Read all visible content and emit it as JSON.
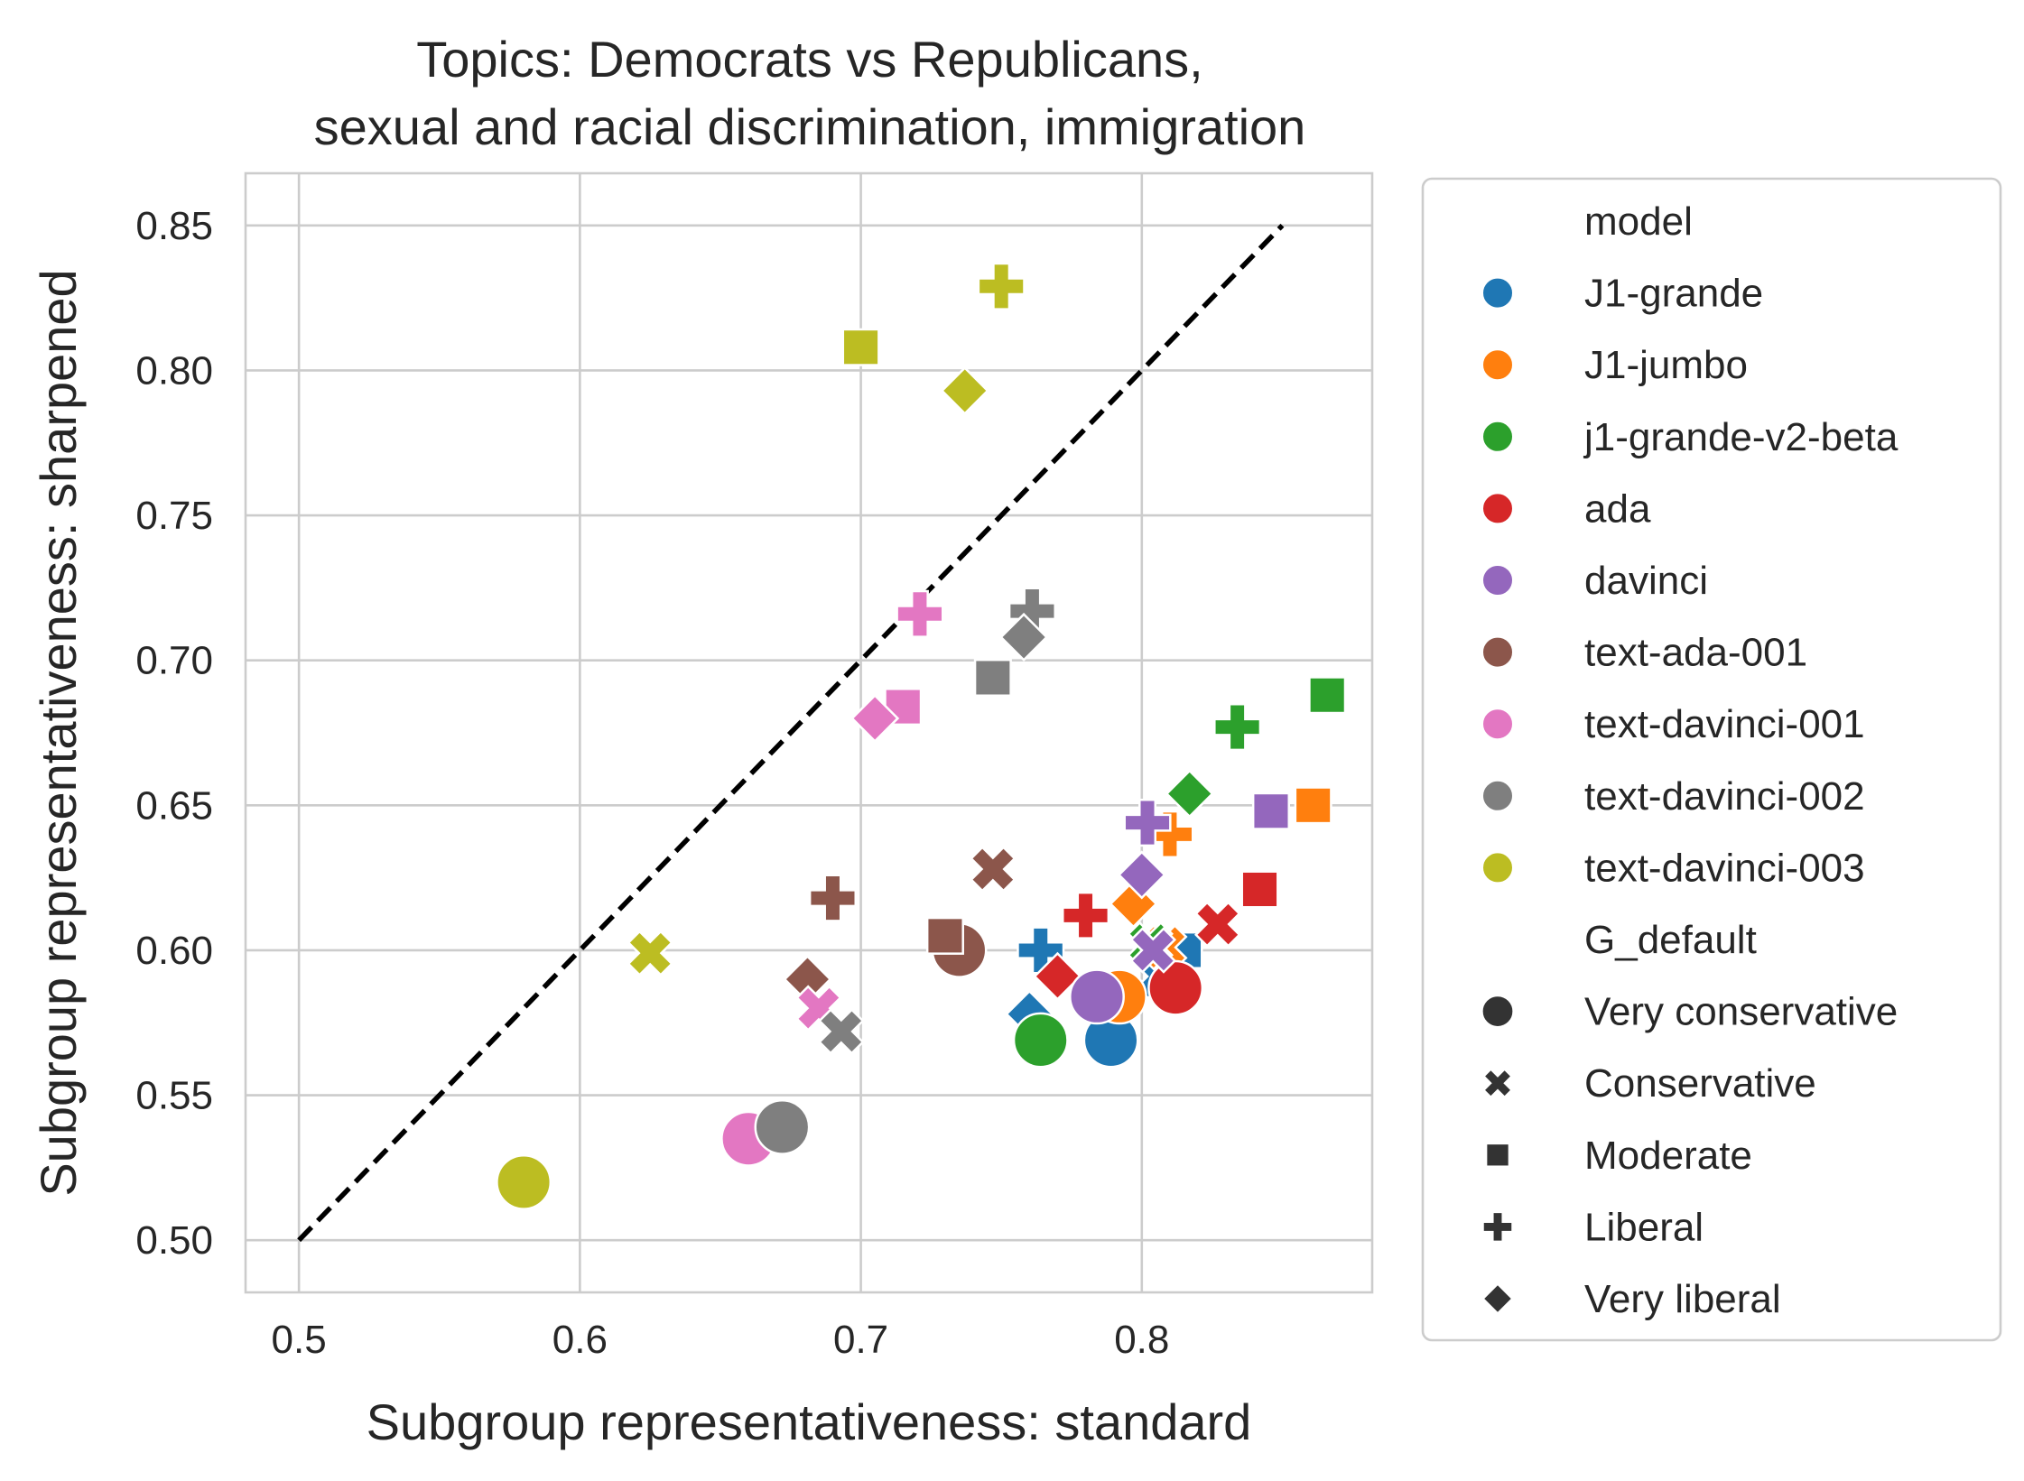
{
  "chart_data": {
    "type": "scatter",
    "title": [
      "Topics: Democrats vs Republicans,",
      "sexual and racial discrimination, immigration"
    ],
    "xlabel": "Subgroup representativeness: standard",
    "ylabel": "Subgroup representativeness: sharpened",
    "xlim": [
      0.481,
      0.882
    ],
    "ylim": [
      0.482,
      0.868
    ],
    "xticks": [
      {
        "value": 0.5,
        "label": "0.5"
      },
      {
        "value": 0.6,
        "label": "0.6"
      },
      {
        "value": 0.7,
        "label": "0.7"
      },
      {
        "value": 0.8,
        "label": "0.8"
      }
    ],
    "yticks": [
      {
        "value": 0.5,
        "label": "0.50"
      },
      {
        "value": 0.55,
        "label": "0.55"
      },
      {
        "value": 0.6,
        "label": "0.60"
      },
      {
        "value": 0.65,
        "label": "0.65"
      },
      {
        "value": 0.7,
        "label": "0.70"
      },
      {
        "value": 0.75,
        "label": "0.75"
      },
      {
        "value": 0.8,
        "label": "0.80"
      },
      {
        "value": 0.85,
        "label": "0.85"
      }
    ],
    "reference_line": {
      "x": [
        0.5,
        0.85
      ],
      "y": [
        0.5,
        0.85
      ],
      "style": "dashed",
      "color": "#000000"
    },
    "legend": {
      "placement": "outside-right",
      "hue_title": "model",
      "style_title": "G_default"
    },
    "models": [
      {
        "name": "J1-grande",
        "color": "#1f77b4"
      },
      {
        "name": "J1-jumbo",
        "color": "#ff7f0e"
      },
      {
        "name": "j1-grande-v2-beta",
        "color": "#2ca02c"
      },
      {
        "name": "ada",
        "color": "#d62728"
      },
      {
        "name": "davinci",
        "color": "#9467bd"
      },
      {
        "name": "text-ada-001",
        "color": "#8c564b"
      },
      {
        "name": "text-davinci-001",
        "color": "#e377c2"
      },
      {
        "name": "text-davinci-002",
        "color": "#7f7f7f"
      },
      {
        "name": "text-davinci-003",
        "color": "#bcbd22"
      }
    ],
    "groups": [
      {
        "name": "Very conservative",
        "marker": "circle"
      },
      {
        "name": "Conservative",
        "marker": "x"
      },
      {
        "name": "Moderate",
        "marker": "square"
      },
      {
        "name": "Liberal",
        "marker": "plus"
      },
      {
        "name": "Very liberal",
        "marker": "diamond"
      }
    ],
    "points": [
      {
        "model": "J1-grande",
        "group": "Very conservative",
        "x": 0.789,
        "y": 0.569
      },
      {
        "model": "J1-grande",
        "group": "Conservative",
        "x": 0.806,
        "y": 0.591
      },
      {
        "model": "J1-grande",
        "group": "Moderate",
        "x": 0.815,
        "y": 0.6
      },
      {
        "model": "J1-grande",
        "group": "Liberal",
        "x": 0.764,
        "y": 0.6
      },
      {
        "model": "J1-grande",
        "group": "Very liberal",
        "x": 0.76,
        "y": 0.578
      },
      {
        "model": "J1-jumbo",
        "group": "Very conservative",
        "x": 0.792,
        "y": 0.584
      },
      {
        "model": "J1-jumbo",
        "group": "Conservative",
        "x": 0.808,
        "y": 0.601
      },
      {
        "model": "J1-jumbo",
        "group": "Moderate",
        "x": 0.861,
        "y": 0.65
      },
      {
        "model": "J1-jumbo",
        "group": "Liberal",
        "x": 0.81,
        "y": 0.64
      },
      {
        "model": "J1-jumbo",
        "group": "Very liberal",
        "x": 0.797,
        "y": 0.616
      },
      {
        "model": "j1-grande-v2-beta",
        "group": "Very conservative",
        "x": 0.764,
        "y": 0.569
      },
      {
        "model": "j1-grande-v2-beta",
        "group": "Conservative",
        "x": 0.803,
        "y": 0.602
      },
      {
        "model": "j1-grande-v2-beta",
        "group": "Moderate",
        "x": 0.866,
        "y": 0.688
      },
      {
        "model": "j1-grande-v2-beta",
        "group": "Liberal",
        "x": 0.834,
        "y": 0.677
      },
      {
        "model": "j1-grande-v2-beta",
        "group": "Very liberal",
        "x": 0.817,
        "y": 0.654
      },
      {
        "model": "ada",
        "group": "Very conservative",
        "x": 0.812,
        "y": 0.587
      },
      {
        "model": "ada",
        "group": "Conservative",
        "x": 0.827,
        "y": 0.609
      },
      {
        "model": "ada",
        "group": "Moderate",
        "x": 0.842,
        "y": 0.621
      },
      {
        "model": "ada",
        "group": "Liberal",
        "x": 0.78,
        "y": 0.612
      },
      {
        "model": "ada",
        "group": "Very liberal",
        "x": 0.77,
        "y": 0.591
      },
      {
        "model": "davinci",
        "group": "Very conservative",
        "x": 0.784,
        "y": 0.584
      },
      {
        "model": "davinci",
        "group": "Conservative",
        "x": 0.804,
        "y": 0.6
      },
      {
        "model": "davinci",
        "group": "Moderate",
        "x": 0.846,
        "y": 0.648
      },
      {
        "model": "davinci",
        "group": "Liberal",
        "x": 0.802,
        "y": 0.644
      },
      {
        "model": "davinci",
        "group": "Very liberal",
        "x": 0.8,
        "y": 0.626
      },
      {
        "model": "text-ada-001",
        "group": "Very conservative",
        "x": 0.735,
        "y": 0.6
      },
      {
        "model": "text-ada-001",
        "group": "Conservative",
        "x": 0.747,
        "y": 0.628
      },
      {
        "model": "text-ada-001",
        "group": "Moderate",
        "x": 0.73,
        "y": 0.605
      },
      {
        "model": "text-ada-001",
        "group": "Liberal",
        "x": 0.69,
        "y": 0.618
      },
      {
        "model": "text-ada-001",
        "group": "Very liberal",
        "x": 0.681,
        "y": 0.59
      },
      {
        "model": "text-davinci-001",
        "group": "Very conservative",
        "x": 0.66,
        "y": 0.535
      },
      {
        "model": "text-davinci-001",
        "group": "Conservative",
        "x": 0.685,
        "y": 0.58
      },
      {
        "model": "text-davinci-001",
        "group": "Moderate",
        "x": 0.715,
        "y": 0.684
      },
      {
        "model": "text-davinci-001",
        "group": "Liberal",
        "x": 0.721,
        "y": 0.716
      },
      {
        "model": "text-davinci-001",
        "group": "Very liberal",
        "x": 0.705,
        "y": 0.68
      },
      {
        "model": "text-davinci-002",
        "group": "Very conservative",
        "x": 0.672,
        "y": 0.539
      },
      {
        "model": "text-davinci-002",
        "group": "Conservative",
        "x": 0.693,
        "y": 0.572
      },
      {
        "model": "text-davinci-002",
        "group": "Moderate",
        "x": 0.747,
        "y": 0.694
      },
      {
        "model": "text-davinci-002",
        "group": "Liberal",
        "x": 0.761,
        "y": 0.717
      },
      {
        "model": "text-davinci-002",
        "group": "Very liberal",
        "x": 0.758,
        "y": 0.708
      },
      {
        "model": "text-davinci-003",
        "group": "Very conservative",
        "x": 0.58,
        "y": 0.52
      },
      {
        "model": "text-davinci-003",
        "group": "Conservative",
        "x": 0.625,
        "y": 0.599
      },
      {
        "model": "text-davinci-003",
        "group": "Moderate",
        "x": 0.7,
        "y": 0.808
      },
      {
        "model": "text-davinci-003",
        "group": "Liberal",
        "x": 0.75,
        "y": 0.829
      },
      {
        "model": "text-davinci-003",
        "group": "Very liberal",
        "x": 0.737,
        "y": 0.793
      }
    ]
  }
}
